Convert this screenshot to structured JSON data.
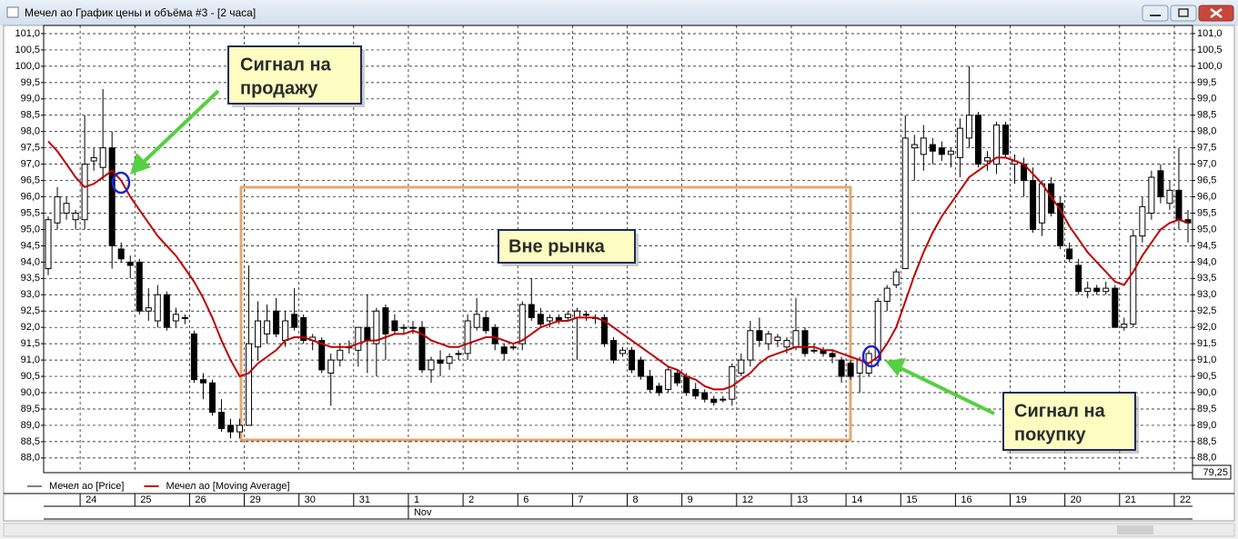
{
  "window_title": "Мечел ао График цены и объёма #3 - [2 часа]",
  "chart_data": {
    "type": "candlestick",
    "categories": [
      null,
      null,
      null,
      null,
      "24",
      null,
      null,
      null,
      null,
      null,
      "25",
      null,
      null,
      null,
      null,
      null,
      "26",
      null,
      null,
      null,
      null,
      null,
      "29",
      null,
      null,
      null,
      null,
      null,
      "30",
      null,
      null,
      null,
      null,
      null,
      "31",
      null,
      null,
      null,
      null,
      null,
      "1",
      null,
      null,
      null,
      null,
      null,
      "2",
      null,
      null,
      null,
      null,
      null,
      "6",
      null,
      null,
      null,
      null,
      null,
      "7",
      null,
      null,
      null,
      null,
      null,
      "8",
      null,
      null,
      null,
      null,
      null,
      "9",
      null,
      null,
      null,
      null,
      null,
      "12",
      null,
      null,
      null,
      null,
      null,
      "13",
      null,
      null,
      null,
      null,
      null,
      "14",
      null,
      null,
      null,
      null,
      null,
      "15",
      null,
      null,
      null,
      null,
      null,
      "16",
      null,
      null,
      null,
      null,
      null,
      "19",
      null,
      null,
      null,
      null,
      null,
      "20",
      null,
      null,
      null,
      null,
      null,
      "21",
      null,
      null,
      null,
      null,
      null,
      "22",
      null
    ],
    "month_labels": [
      null,
      null,
      null,
      null,
      null,
      null,
      null,
      null,
      null,
      null,
      null,
      null,
      null,
      null,
      null,
      null,
      null,
      null,
      null,
      null,
      null,
      null,
      null,
      null,
      null,
      null,
      null,
      null,
      null,
      null,
      null,
      null,
      null,
      null,
      null,
      null,
      null,
      null,
      null,
      null,
      "Nov",
      null,
      null,
      null,
      null,
      null,
      null,
      null,
      null,
      null,
      null,
      null,
      null,
      null,
      null,
      null,
      null,
      null,
      null,
      null,
      null,
      null,
      null,
      null,
      null,
      null,
      null,
      null,
      null,
      null,
      null,
      null,
      null,
      null,
      null,
      null,
      null,
      null,
      null,
      null,
      null,
      null,
      null,
      null,
      null,
      null,
      null,
      null,
      null,
      null,
      null,
      null,
      null,
      null,
      null,
      null,
      null,
      null,
      null,
      null,
      null,
      null,
      null,
      null,
      null,
      null,
      null,
      null,
      null,
      null,
      null,
      null,
      null,
      null,
      null,
      null,
      null,
      null,
      null,
      null,
      null,
      null,
      null,
      null,
      null,
      null
    ],
    "open": [
      93.8,
      95.2,
      95.5,
      95.3,
      95.3,
      97.1,
      96.9,
      97.5,
      94.4,
      94.0,
      94.0,
      92.5,
      92.2,
      93.0,
      92.2,
      92.3,
      91.8,
      90.4,
      90.3,
      89.4,
      89.0,
      88.8,
      89.0,
      91.4,
      91.8,
      92.5,
      91.6,
      92.4,
      92.3,
      91.6,
      91.6,
      90.6,
      91.0,
      91.4,
      91.3,
      92.0,
      91.5,
      92.6,
      92.2,
      92.0,
      92.0,
      92.0,
      90.7,
      91.0,
      90.9,
      91.2,
      91.2,
      92.0,
      92.3,
      92.0,
      91.4,
      91.4,
      91.5,
      92.7,
      92.4,
      92.2,
      92.3,
      92.3,
      92.3,
      92.4,
      92.3,
      92.3,
      91.6,
      91.2,
      91.3,
      91.0,
      90.5,
      90.2,
      90.1,
      90.6,
      90.5,
      90.1,
      90.0,
      89.8,
      89.8,
      89.8,
      90.6,
      91.0,
      91.9,
      91.5,
      91.6,
      91.4,
      91.4,
      91.9,
      91.3,
      91.3,
      91.2,
      91.0,
      90.9,
      90.6,
      90.6,
      91.0,
      92.8,
      93.3,
      93.8,
      97.5,
      97.3,
      97.6,
      97.5,
      97.3,
      97.2,
      97.8,
      98.5,
      97.1,
      97.0,
      98.2,
      97.0,
      97.0,
      96.5,
      95.2,
      96.4,
      95.8,
      94.4,
      93.9,
      93.1,
      93.2,
      93.1,
      93.2,
      92.0,
      92.1,
      94.8,
      95.5,
      96.8,
      95.8,
      96.2,
      95.3
    ],
    "high": [
      95.4,
      96.3,
      96.0,
      95.6,
      98.5,
      97.5,
      99.3,
      98.0,
      94.6,
      94.2,
      94.1,
      93.2,
      93.3,
      93.1,
      92.6,
      92.4,
      91.9,
      90.6,
      90.4,
      89.8,
      89.2,
      89.2,
      93.9,
      92.8,
      92.7,
      92.9,
      92.5,
      93.2,
      92.4,
      91.8,
      91.7,
      91.2,
      91.5,
      91.6,
      92.0,
      93.0,
      92.6,
      92.7,
      92.4,
      92.1,
      92.2,
      92.2,
      91.1,
      91.3,
      91.2,
      91.3,
      92.4,
      92.9,
      92.5,
      92.1,
      91.5,
      91.5,
      92.8,
      93.5,
      92.6,
      92.4,
      92.4,
      92.5,
      92.6,
      92.5,
      92.4,
      92.4,
      91.7,
      91.4,
      91.4,
      91.1,
      90.7,
      90.3,
      90.8,
      90.7,
      90.6,
      90.3,
      90.1,
      89.9,
      89.9,
      90.9,
      91.2,
      92.2,
      92.3,
      91.9,
      91.8,
      91.7,
      92.9,
      92.0,
      91.5,
      91.4,
      91.3,
      91.1,
      91.0,
      91.1,
      91.3,
      92.9,
      93.3,
      93.8,
      98.5,
      97.9,
      98.2,
      97.8,
      97.7,
      97.5,
      98.4,
      100.0,
      98.6,
      97.4,
      98.3,
      98.3,
      97.3,
      97.2,
      96.9,
      96.5,
      96.6,
      96.0,
      94.6,
      94.1,
      93.4,
      93.3,
      93.4,
      93.3,
      92.3,
      95.0,
      96.0,
      96.8,
      97.0,
      96.5,
      97.5,
      95.6
    ],
    "low": [
      93.6,
      95.0,
      95.3,
      95.0,
      95.0,
      96.8,
      96.5,
      93.8,
      94.0,
      93.5,
      92.4,
      92.2,
      92.0,
      91.9,
      92.0,
      92.1,
      90.3,
      89.8,
      89.3,
      88.8,
      88.6,
      88.6,
      89.0,
      91.0,
      91.5,
      91.7,
      91.4,
      91.9,
      91.5,
      91.3,
      90.6,
      89.6,
      90.8,
      91.2,
      90.8,
      90.6,
      90.5,
      91.0,
      91.8,
      91.8,
      91.8,
      90.6,
      90.3,
      90.5,
      90.7,
      91.0,
      91.0,
      91.9,
      91.8,
      91.3,
      91.0,
      91.3,
      91.3,
      92.2,
      92.0,
      92.0,
      92.1,
      92.2,
      91.0,
      92.2,
      92.1,
      91.4,
      90.9,
      91.1,
      90.6,
      90.4,
      90.0,
      89.9,
      90.0,
      90.2,
      89.9,
      89.8,
      89.7,
      89.6,
      89.7,
      89.6,
      90.5,
      90.8,
      91.4,
      91.3,
      91.4,
      91.2,
      91.3,
      91.1,
      91.2,
      91.1,
      90.9,
      90.3,
      90.4,
      90.0,
      90.5,
      90.8,
      92.5,
      93.2,
      93.8,
      96.5,
      96.8,
      97.0,
      97.1,
      96.9,
      96.6,
      97.5,
      96.9,
      96.8,
      96.7,
      97.2,
      96.4,
      96.0,
      94.9,
      94.8,
      95.4,
      94.4,
      94.0,
      93.0,
      92.9,
      93.0,
      93.0,
      92.0,
      91.9,
      92.0,
      94.6,
      95.3,
      95.8,
      95.6,
      95.0,
      94.6
    ],
    "close": [
      95.3,
      96.0,
      95.8,
      95.5,
      97.0,
      97.2,
      97.5,
      94.5,
      94.1,
      93.9,
      92.5,
      92.6,
      93.0,
      92.0,
      92.4,
      92.3,
      90.4,
      90.3,
      89.4,
      88.9,
      88.8,
      89.0,
      91.5,
      92.2,
      92.2,
      91.8,
      92.2,
      92.0,
      91.6,
      91.7,
      90.7,
      91.0,
      91.3,
      91.4,
      92.0,
      91.6,
      92.5,
      91.8,
      91.9,
      92.0,
      92.0,
      90.7,
      91.0,
      90.9,
      91.1,
      91.2,
      92.2,
      92.4,
      91.9,
      91.5,
      91.2,
      91.4,
      92.7,
      92.3,
      92.1,
      92.3,
      92.2,
      92.4,
      92.5,
      92.4,
      92.3,
      91.5,
      91.0,
      91.3,
      90.7,
      90.5,
      90.1,
      90.0,
      90.7,
      90.3,
      90.0,
      89.9,
      89.8,
      89.7,
      89.8,
      90.8,
      91.0,
      91.9,
      91.6,
      91.8,
      91.7,
      91.6,
      91.9,
      91.2,
      91.3,
      91.2,
      91.1,
      90.5,
      90.5,
      91.0,
      91.2,
      92.8,
      93.2,
      93.7,
      97.8,
      97.6,
      97.8,
      97.4,
      97.3,
      97.4,
      98.1,
      98.5,
      97.0,
      97.2,
      98.2,
      97.3,
      97.1,
      96.5,
      95.0,
      96.4,
      95.5,
      94.5,
      94.1,
      93.1,
      93.2,
      93.1,
      93.2,
      92.0,
      92.1,
      94.8,
      95.7,
      96.6,
      96.0,
      96.2,
      95.3,
      95.2
    ],
    "ma": [
      97.7,
      97.4,
      97.0,
      96.6,
      96.3,
      96.4,
      96.6,
      96.8,
      96.5,
      96.0,
      95.6,
      95.2,
      94.8,
      94.5,
      94.2,
      93.8,
      93.4,
      92.9,
      92.3,
      91.6,
      91.0,
      90.5,
      90.6,
      90.9,
      91.1,
      91.3,
      91.6,
      91.7,
      91.7,
      91.6,
      91.5,
      91.4,
      91.4,
      91.4,
      91.5,
      91.6,
      91.6,
      91.7,
      91.8,
      91.8,
      91.9,
      91.8,
      91.6,
      91.5,
      91.4,
      91.4,
      91.5,
      91.6,
      91.7,
      91.7,
      91.6,
      91.5,
      91.6,
      91.8,
      92.0,
      92.1,
      92.2,
      92.2,
      92.3,
      92.3,
      92.3,
      92.2,
      92.0,
      91.8,
      91.6,
      91.4,
      91.2,
      91.0,
      90.8,
      90.7,
      90.5,
      90.4,
      90.2,
      90.1,
      90.1,
      90.2,
      90.4,
      90.6,
      90.9,
      91.1,
      91.2,
      91.3,
      91.4,
      91.4,
      91.4,
      91.3,
      91.3,
      91.2,
      91.1,
      91.0,
      90.9,
      91.1,
      91.5,
      92.0,
      92.8,
      93.6,
      94.3,
      94.9,
      95.4,
      95.8,
      96.2,
      96.6,
      96.8,
      97.0,
      97.2,
      97.2,
      97.1,
      97.0,
      96.7,
      96.4,
      96.0,
      95.6,
      95.1,
      94.7,
      94.3,
      94.0,
      93.7,
      93.4,
      93.3,
      93.7,
      94.2,
      94.6,
      95.0,
      95.2,
      95.3,
      95.2
    ],
    "series": [
      {
        "name": "Мечел ао [Price]",
        "color": "#000000"
      },
      {
        "name": "Мечел ао [Moving Average]",
        "color": "#c00000"
      }
    ],
    "ylim": [
      87.55,
      101.25
    ],
    "yticks": [
      {
        "value": 88.0,
        "label": "88,0"
      },
      {
        "value": 88.5,
        "label": "88,5"
      },
      {
        "value": 89.0,
        "label": "89,0"
      },
      {
        "value": 89.5,
        "label": "89,5"
      },
      {
        "value": 90.0,
        "label": "90,0"
      },
      {
        "value": 90.5,
        "label": "90,5"
      },
      {
        "value": 91.0,
        "label": "91,0"
      },
      {
        "value": 91.5,
        "label": "91,5"
      },
      {
        "value": 92.0,
        "label": "92,0"
      },
      {
        "value": 92.5,
        "label": "92,5"
      },
      {
        "value": 93.0,
        "label": "93,0"
      },
      {
        "value": 93.5,
        "label": "93,5"
      },
      {
        "value": 94.0,
        "label": "94,0"
      },
      {
        "value": 94.5,
        "label": "94,5"
      },
      {
        "value": 95.0,
        "label": "95,0"
      },
      {
        "value": 95.5,
        "label": "95,5"
      },
      {
        "value": 96.0,
        "label": "96,0"
      },
      {
        "value": 96.5,
        "label": "96,5"
      },
      {
        "value": 97.0,
        "label": "97,0"
      },
      {
        "value": 97.5,
        "label": "97,5"
      },
      {
        "value": 98.0,
        "label": "98,0"
      },
      {
        "value": 98.5,
        "label": "98,5"
      },
      {
        "value": 99.0,
        "label": "99,0"
      },
      {
        "value": 99.5,
        "label": "99,5"
      },
      {
        "value": 100.0,
        "label": "100,0"
      },
      {
        "value": 100.5,
        "label": "100,5"
      },
      {
        "value": 101.0,
        "label": "101,0"
      }
    ],
    "grid": true,
    "corner_label": "79,25",
    "annotations": [
      {
        "lines": [
          "Сигнал на",
          "продажу"
        ]
      },
      {
        "lines": [
          "Вне рынка"
        ]
      },
      {
        "lines": [
          "Сигнал на",
          "покупку"
        ]
      }
    ]
  }
}
